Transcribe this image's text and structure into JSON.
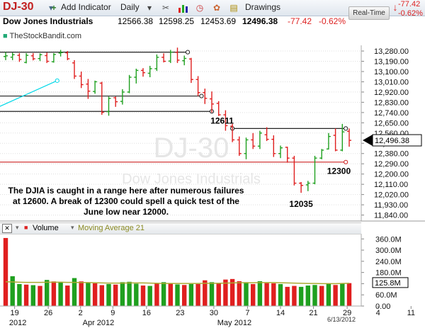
{
  "toolbar": {
    "symbol": "DJ-30",
    "add_indicator": "Add Indicator",
    "interval": "Daily",
    "drawings": "Drawings",
    "realtime": "Real-Time",
    "change": "-77.42",
    "change_pct": "-0.62%",
    "icons": [
      "plus-icon",
      "dropdown-icon",
      "tools-icon",
      "bar-chart-icon",
      "clock-icon",
      "palette-icon",
      "note-icon",
      "down-arrow-icon"
    ]
  },
  "header": {
    "name": "Dow Jones Industrials",
    "open": "12566.38",
    "high": "12598.25",
    "low": "12453.69",
    "close": "12496.38",
    "change": "-77.42",
    "change_pct": "-0.62%",
    "source": "TheStockBandit.com"
  },
  "colors": {
    "up": "#1fa01f",
    "down": "#e01f1f",
    "price_tag": "#000000",
    "support_line": "#cc2020",
    "trend_line": "#00d8e8",
    "ma_line": "#aaaa33",
    "grid": "#dddddd"
  },
  "watermark": {
    "symbol": "DJ-30",
    "name": "Dow Jones Industrials"
  },
  "annotation": {
    "text": "The DJIA is caught in a range here after numerous failures at 12600. A break of 12300 could spell a quick test of the June low near 12000."
  },
  "chart_data": [
    {
      "type": "ohlc",
      "y_ticks": [
        "13,280.00",
        "13,190.00",
        "13,100.00",
        "13,010.00",
        "12,920.00",
        "12,830.00",
        "12,740.00",
        "12,650.00",
        "12,560.00",
        "12,470.00",
        "12,380.00",
        "12,290.00",
        "12,200.00",
        "12,110.00",
        "12,020.00",
        "11,930.00",
        "11,840.00"
      ],
      "ylim": [
        11800,
        13330
      ],
      "last_price_tag": "12,496.38",
      "price_labels": [
        {
          "text": "12611",
          "x": 31.5,
          "y": 12611
        },
        {
          "text": "12300",
          "x": 48.5,
          "y": 12300
        },
        {
          "text": "12035",
          "x": 43,
          "y": 12035
        }
      ],
      "lines": [
        {
          "name": "upper-resistance",
          "x1": -1,
          "y1": 13270,
          "x2": 26.5,
          "y2": 13270
        },
        {
          "name": "mid-resistance",
          "x1": -1,
          "y1": 12885,
          "x2": 28.5,
          "y2": 12885
        },
        {
          "name": "lower-resistance",
          "x1": -1,
          "y1": 12750,
          "x2": 30,
          "y2": 12750
        },
        {
          "name": "range-top",
          "x1": 33,
          "y1": 12600,
          "x2": 49.5,
          "y2": 12600
        },
        {
          "name": "range-bottom",
          "x1": -1,
          "y1": 12305,
          "x2": 49.5,
          "y2": 12305
        },
        {
          "name": "trend-line",
          "x1": -1,
          "y1": 12790,
          "x2": 7.5,
          "y2": 13020
        }
      ],
      "candles": [
        {
          "o": 13232,
          "h": 13270,
          "l": 13200,
          "c": 13238
        },
        {
          "o": 13226,
          "h": 13266,
          "l": 13200,
          "c": 13248
        },
        {
          "o": 13242,
          "h": 13262,
          "l": 13185,
          "c": 13206
        },
        {
          "o": 13180,
          "h": 13262,
          "l": 13172,
          "c": 13242
        },
        {
          "o": 13238,
          "h": 13262,
          "l": 13198,
          "c": 13212
        },
        {
          "o": 13214,
          "h": 13260,
          "l": 13192,
          "c": 13248
        },
        {
          "o": 13240,
          "h": 13266,
          "l": 13175,
          "c": 13190
        },
        {
          "o": 13186,
          "h": 13262,
          "l": 13178,
          "c": 13250
        },
        {
          "o": 13262,
          "h": 13290,
          "l": 13232,
          "c": 13266
        },
        {
          "o": 13264,
          "h": 13280,
          "l": 13200,
          "c": 13212
        },
        {
          "o": 13176,
          "h": 13200,
          "l": 13035,
          "c": 13060
        },
        {
          "o": 13060,
          "h": 13100,
          "l": 12955,
          "c": 12985
        },
        {
          "o": 12990,
          "h": 13035,
          "l": 12860,
          "c": 12928
        },
        {
          "o": 12925,
          "h": 13020,
          "l": 12905,
          "c": 13010
        },
        {
          "o": 12998,
          "h": 13010,
          "l": 12720,
          "c": 12742
        },
        {
          "o": 12748,
          "h": 12880,
          "l": 12712,
          "c": 12865
        },
        {
          "o": 12870,
          "h": 12880,
          "l": 12790,
          "c": 12835
        },
        {
          "o": 12838,
          "h": 12945,
          "l": 12810,
          "c": 12920
        },
        {
          "o": 12920,
          "h": 13070,
          "l": 12910,
          "c": 13050
        },
        {
          "o": 13050,
          "h": 13125,
          "l": 12995,
          "c": 13110
        },
        {
          "o": 13110,
          "h": 13130,
          "l": 13055,
          "c": 13090
        },
        {
          "o": 13085,
          "h": 13150,
          "l": 13050,
          "c": 13125
        },
        {
          "o": 13125,
          "h": 13250,
          "l": 13105,
          "c": 13225
        },
        {
          "o": 13225,
          "h": 13260,
          "l": 13180,
          "c": 13190
        },
        {
          "o": 13192,
          "h": 13290,
          "l": 13175,
          "c": 13270
        },
        {
          "o": 13268,
          "h": 13310,
          "l": 13175,
          "c": 13200
        },
        {
          "o": 13195,
          "h": 13240,
          "l": 13155,
          "c": 13215
        },
        {
          "o": 13210,
          "h": 13220,
          "l": 13000,
          "c": 13030
        },
        {
          "o": 13030,
          "h": 13060,
          "l": 12885,
          "c": 12915
        },
        {
          "o": 12915,
          "h": 12950,
          "l": 12815,
          "c": 12865
        },
        {
          "o": 12860,
          "h": 12925,
          "l": 12740,
          "c": 12815
        },
        {
          "o": 12820,
          "h": 12840,
          "l": 12710,
          "c": 12720
        },
        {
          "o": 12720,
          "h": 12760,
          "l": 12580,
          "c": 12625
        },
        {
          "o": 12620,
          "h": 12640,
          "l": 12480,
          "c": 12500
        },
        {
          "o": 12500,
          "h": 12530,
          "l": 12360,
          "c": 12380
        },
        {
          "o": 12380,
          "h": 12520,
          "l": 12330,
          "c": 12500
        },
        {
          "o": 12500,
          "h": 12560,
          "l": 12420,
          "c": 12445
        },
        {
          "o": 12445,
          "h": 12580,
          "l": 12420,
          "c": 12560
        },
        {
          "o": 12545,
          "h": 12611,
          "l": 12490,
          "c": 12505
        },
        {
          "o": 12505,
          "h": 12540,
          "l": 12350,
          "c": 12380
        },
        {
          "o": 12380,
          "h": 12450,
          "l": 12340,
          "c": 12430
        },
        {
          "o": 12435,
          "h": 12440,
          "l": 12300,
          "c": 12340
        },
        {
          "o": 12340,
          "h": 12360,
          "l": 12100,
          "c": 12120
        },
        {
          "o": 12120,
          "h": 12130,
          "l": 12035,
          "c": 12100
        },
        {
          "o": 12105,
          "h": 12140,
          "l": 12050,
          "c": 12120
        },
        {
          "o": 12120,
          "h": 12360,
          "l": 12110,
          "c": 12340
        },
        {
          "o": 12340,
          "h": 12420,
          "l": 12330,
          "c": 12410
        },
        {
          "o": 12420,
          "h": 12560,
          "l": 12415,
          "c": 12530
        },
        {
          "o": 12540,
          "h": 12600,
          "l": 12400,
          "c": 12410
        },
        {
          "o": 12410,
          "h": 12640,
          "l": 12400,
          "c": 12570
        },
        {
          "o": 12575,
          "h": 12600,
          "l": 12440,
          "c": 12496
        }
      ]
    },
    {
      "type": "bar",
      "indicator": "Volume",
      "ma_label": "Moving Average 21",
      "y_ticks": [
        "360.0M",
        "300.0M",
        "240.0M",
        "180.0M",
        "120.0M",
        "60.0M",
        "0.00"
      ],
      "ylim": [
        0,
        380
      ],
      "last_value_tag": "125.8M",
      "values": [
        365,
        160,
        118,
        115,
        112,
        108,
        140,
        132,
        130,
        110,
        150,
        132,
        125,
        122,
        112,
        118,
        115,
        128,
        130,
        120,
        110,
        108,
        122,
        128,
        120,
        116,
        113,
        118,
        118,
        138,
        128,
        123,
        142,
        145,
        133,
        128,
        118,
        133,
        123,
        122,
        118,
        103,
        108,
        103,
        110,
        113,
        108,
        118,
        113,
        121,
        123
      ],
      "up": [
        false,
        true,
        true,
        false,
        true,
        false,
        true,
        false,
        true,
        false,
        true,
        false,
        true,
        false,
        false,
        true,
        false,
        true,
        true,
        true,
        false,
        true,
        false,
        true,
        false,
        true,
        false,
        true,
        false,
        false,
        true,
        false,
        false,
        false,
        false,
        true,
        false,
        true,
        false,
        false,
        true,
        false,
        false,
        true,
        true,
        true,
        false,
        true,
        false,
        true,
        false
      ],
      "ma": [
        130,
        129,
        128,
        127,
        127,
        127,
        128,
        128,
        128,
        127,
        127,
        126,
        126,
        125,
        124,
        123,
        123,
        123,
        124,
        124,
        124,
        123,
        122,
        121,
        121,
        121,
        121,
        121,
        121,
        122,
        122,
        122,
        123,
        124,
        125,
        125,
        125,
        126,
        126,
        126,
        125,
        124,
        123,
        122,
        121,
        121,
        120,
        120,
        120,
        121,
        122
      ]
    }
  ],
  "x_axis": {
    "day_ticks": [
      {
        "label": "19",
        "x": 1.3
      },
      {
        "label": "26",
        "x": 6.2
      },
      {
        "label": "2",
        "x": 10.9
      },
      {
        "label": "9",
        "x": 15.6
      },
      {
        "label": "16",
        "x": 20.5
      },
      {
        "label": "23",
        "x": 25.4
      },
      {
        "label": "30",
        "x": 30.3
      },
      {
        "label": "7",
        "x": 35.2
      },
      {
        "label": "14",
        "x": 40.0
      },
      {
        "label": "21",
        "x": 44.8
      },
      {
        "label": "29",
        "x": 49.7
      },
      {
        "label": "4",
        "x": 54.2
      },
      {
        "label": "11",
        "x": 59.0
      }
    ],
    "month_ticks": [
      {
        "label": "2012",
        "x": 0.5
      },
      {
        "label": "Apr 2012",
        "x": 11.2
      },
      {
        "label": "May 2012",
        "x": 30.8
      }
    ],
    "date_stamp": "6/13/2012"
  }
}
